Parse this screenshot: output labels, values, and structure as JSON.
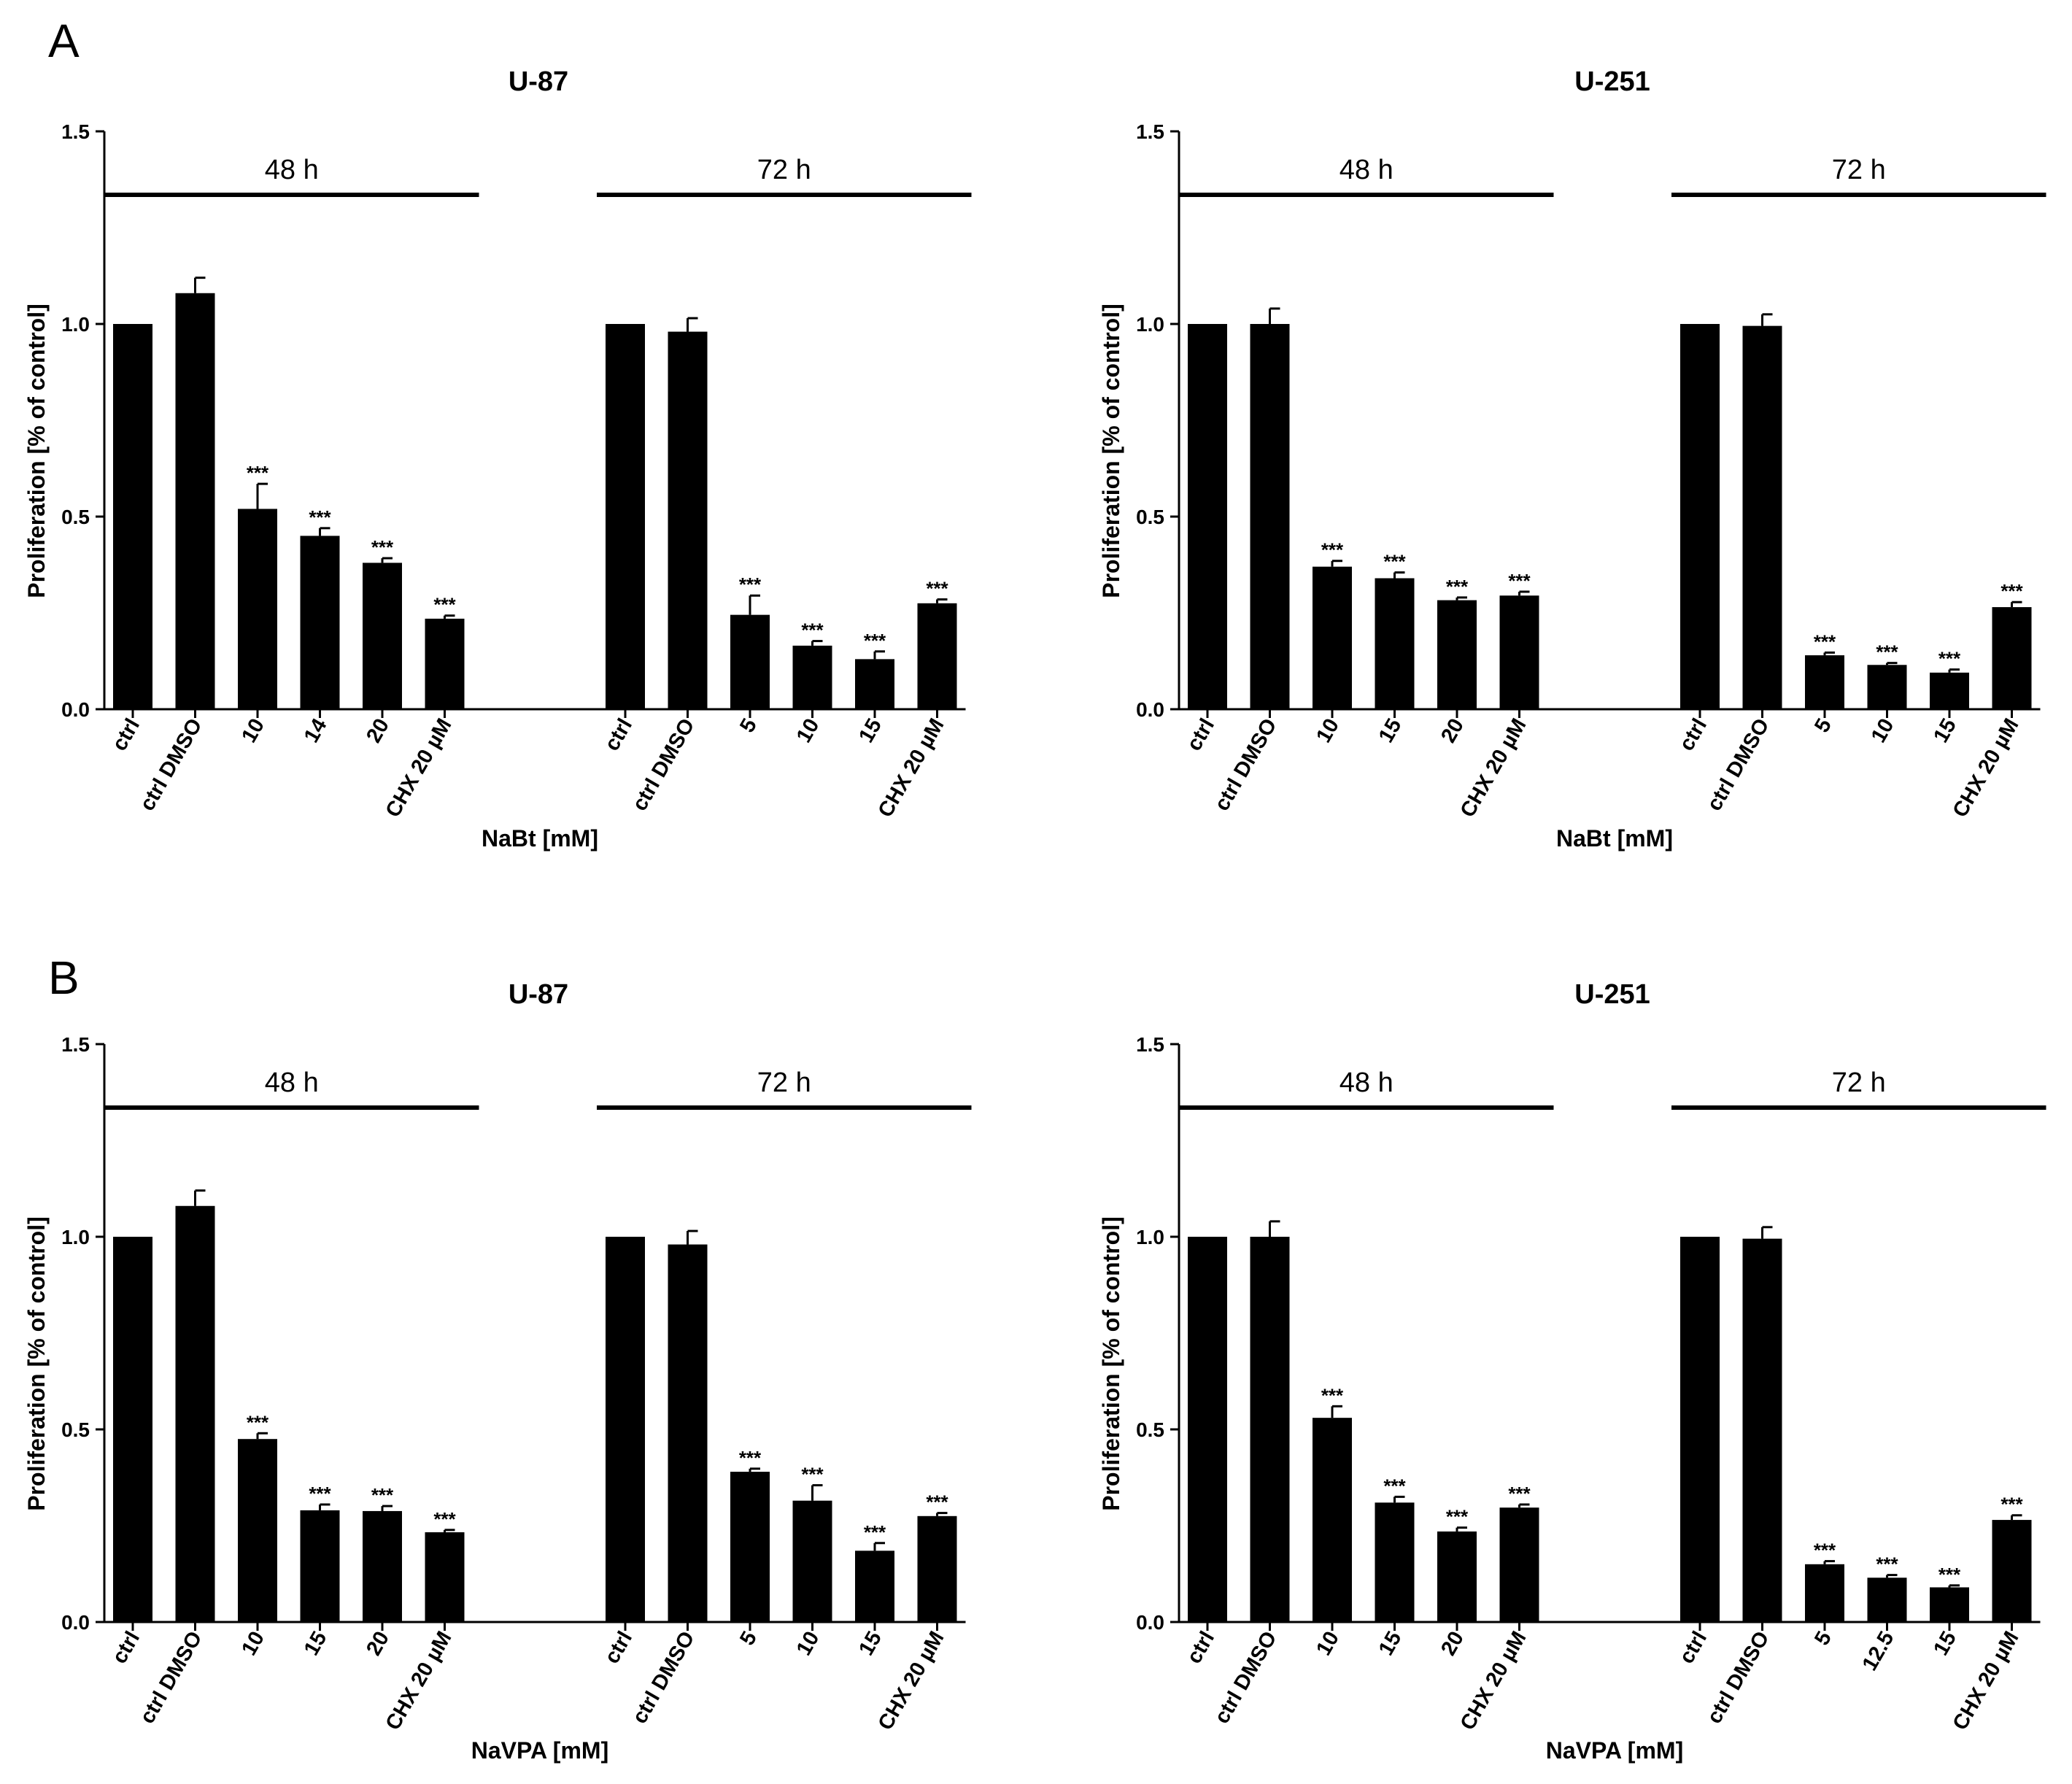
{
  "panels": [
    {
      "letter": "A"
    },
    {
      "letter": "B"
    }
  ],
  "chart_data": [
    {
      "type": "bar",
      "panel": "A",
      "title": "U-87",
      "xlabel": "NaBt [mM]",
      "ylabel": "Proliferation [% of control]",
      "ylim": [
        0,
        1.5
      ],
      "yticks": [
        "0.0",
        "0.5",
        "1.0",
        "1.5"
      ],
      "groups": [
        {
          "label": "48 h",
          "categories": [
            "ctrl",
            "ctrl DMSO",
            "10",
            "14",
            "20",
            "CHX 20 µM"
          ],
          "values": [
            1.0,
            1.08,
            0.52,
            0.45,
            0.38,
            0.235
          ],
          "errors": [
            0,
            0.04,
            0.065,
            0.02,
            0.012,
            0.008
          ],
          "significance": [
            "",
            "",
            "***",
            "***",
            "***",
            "***"
          ]
        },
        {
          "label": "72 h",
          "categories": [
            "ctrl",
            "ctrl DMSO",
            "5",
            "10",
            "15",
            "CHX 20 µM"
          ],
          "values": [
            1.0,
            0.98,
            0.245,
            0.165,
            0.13,
            0.275
          ],
          "errors": [
            0,
            0.035,
            0.05,
            0.012,
            0.02,
            0.01
          ],
          "significance": [
            "",
            "",
            "***",
            "***",
            "***",
            "***"
          ]
        }
      ]
    },
    {
      "type": "bar",
      "panel": "A",
      "title": "U-251",
      "xlabel": "NaBt [mM]",
      "ylabel": "Proliferation [% of control]",
      "ylim": [
        0,
        1.5
      ],
      "yticks": [
        "0.0",
        "0.5",
        "1.0",
        "1.5"
      ],
      "groups": [
        {
          "label": "48 h",
          "categories": [
            "ctrl",
            "ctrl DMSO",
            "10",
            "15",
            "20",
            "CHX 20 µM"
          ],
          "values": [
            1.0,
            1.0,
            0.37,
            0.34,
            0.283,
            0.295
          ],
          "errors": [
            0,
            0.04,
            0.015,
            0.015,
            0.007,
            0.01
          ],
          "significance": [
            "",
            "",
            "***",
            "***",
            "***",
            "***"
          ]
        },
        {
          "label": "72 h",
          "categories": [
            "ctrl",
            "ctrl DMSO",
            "5",
            "10",
            "15",
            "CHX 20 µM"
          ],
          "values": [
            1.0,
            0.995,
            0.14,
            0.115,
            0.095,
            0.265
          ],
          "errors": [
            0,
            0.03,
            0.007,
            0.005,
            0.008,
            0.013
          ],
          "significance": [
            "",
            "",
            "***",
            "***",
            "***",
            "***"
          ]
        }
      ]
    },
    {
      "type": "bar",
      "panel": "B",
      "title": "U-87",
      "xlabel": "NaVPA [mM]",
      "ylabel": "Proliferation [% of control]",
      "ylim": [
        0,
        1.5
      ],
      "yticks": [
        "0.0",
        "0.5",
        "1.0",
        "1.5"
      ],
      "groups": [
        {
          "label": "48 h",
          "categories": [
            "ctrl",
            "ctrl DMSO",
            "10",
            "15",
            "20",
            "CHX 20 µM"
          ],
          "values": [
            1.0,
            1.08,
            0.475,
            0.29,
            0.288,
            0.233
          ],
          "errors": [
            0,
            0.04,
            0.015,
            0.015,
            0.013,
            0.006
          ],
          "significance": [
            "",
            "",
            "***",
            "***",
            "***",
            "***"
          ]
        },
        {
          "label": "72 h",
          "categories": [
            "ctrl",
            "ctrl DMSO",
            "5",
            "10",
            "15",
            "CHX 20 µM"
          ],
          "values": [
            1.0,
            0.98,
            0.39,
            0.315,
            0.185,
            0.275
          ],
          "errors": [
            0,
            0.035,
            0.008,
            0.04,
            0.02,
            0.008
          ],
          "significance": [
            "",
            "",
            "***",
            "***",
            "***",
            "***"
          ]
        }
      ]
    },
    {
      "type": "bar",
      "panel": "B",
      "title": "U-251",
      "xlabel": "NaVPA [mM]",
      "ylabel": "Proliferation [% of control]",
      "ylim": [
        0,
        1.5
      ],
      "yticks": [
        "0.0",
        "0.5",
        "1.0",
        "1.5"
      ],
      "groups": [
        {
          "label": "48 h",
          "categories": [
            "ctrl",
            "ctrl DMSO",
            "10",
            "15",
            "20",
            "CHX 20 µM"
          ],
          "values": [
            1.0,
            1.0,
            0.53,
            0.31,
            0.235,
            0.297
          ],
          "errors": [
            0,
            0.04,
            0.03,
            0.015,
            0.01,
            0.008
          ],
          "significance": [
            "",
            "",
            "***",
            "***",
            "***",
            "***"
          ]
        },
        {
          "label": "72 h",
          "categories": [
            "ctrl",
            "ctrl DMSO",
            "5",
            "12.5",
            "15",
            "CHX 20 µM"
          ],
          "values": [
            1.0,
            0.995,
            0.15,
            0.115,
            0.09,
            0.265
          ],
          "errors": [
            0,
            0.03,
            0.008,
            0.007,
            0.005,
            0.012
          ],
          "significance": [
            "",
            "",
            "***",
            "***",
            "***",
            "***"
          ]
        }
      ]
    }
  ]
}
